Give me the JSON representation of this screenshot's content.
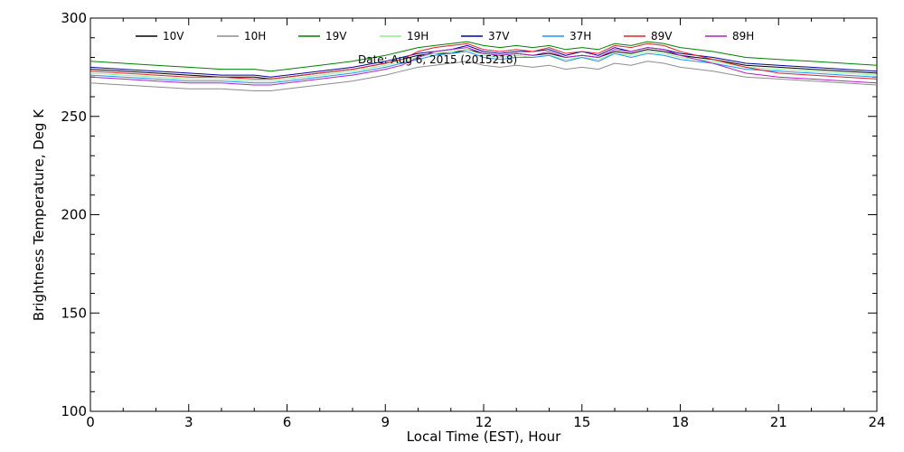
{
  "chart_data": {
    "type": "line",
    "title": "",
    "annotation": "Date: Aug 6, 2015 (2015218)",
    "xlabel": "Local Time (EST), Hour",
    "ylabel": "Brightness Temperature, Deg K",
    "xlim": [
      0,
      24
    ],
    "ylim": [
      100,
      300
    ],
    "xticks": [
      0,
      3,
      6,
      9,
      12,
      15,
      18,
      21,
      24
    ],
    "yticks": [
      100,
      150,
      200,
      250,
      300
    ],
    "grid": false,
    "legend_position": "top",
    "x": [
      0,
      1,
      2,
      3,
      4,
      5,
      5.5,
      6,
      7,
      8,
      9,
      9.5,
      10,
      10.5,
      11,
      11.5,
      12,
      12.5,
      13,
      13.5,
      14,
      14.5,
      15,
      15.5,
      16,
      16.5,
      17,
      17.5,
      18,
      19,
      20,
      21,
      22,
      23,
      24
    ],
    "series": [
      {
        "name": "10V",
        "color": "#000000",
        "values": [
          274,
          273,
          272,
          271,
          270,
          270,
          269,
          270,
          272,
          274,
          277,
          279,
          281,
          282,
          282,
          284,
          282,
          281,
          282,
          281,
          282,
          280,
          281,
          280,
          283,
          282,
          284,
          283,
          281,
          279,
          276,
          275,
          274,
          273,
          272
        ]
      },
      {
        "name": "10H",
        "color": "#8c8c8c",
        "values": [
          267,
          266,
          265,
          264,
          264,
          263,
          263,
          264,
          266,
          268,
          271,
          273,
          275,
          276,
          277,
          278,
          276,
          275,
          276,
          275,
          276,
          274,
          275,
          274,
          277,
          276,
          278,
          277,
          275,
          273,
          270,
          269,
          268,
          267,
          266
        ]
      },
      {
        "name": "19V",
        "color": "#008000",
        "values": [
          278,
          277,
          276,
          275,
          274,
          274,
          273,
          274,
          276,
          278,
          281,
          283,
          285,
          286,
          287,
          288,
          286,
          285,
          286,
          285,
          286,
          284,
          285,
          284,
          287,
          286,
          288,
          287,
          285,
          283,
          280,
          279,
          278,
          277,
          276
        ]
      },
      {
        "name": "19H",
        "color": "#90ee90",
        "values": [
          272,
          271,
          270,
          269,
          269,
          268,
          268,
          269,
          271,
          273,
          276,
          278,
          280,
          282,
          283,
          284,
          281,
          280,
          281,
          280,
          281,
          279,
          280,
          279,
          282,
          281,
          283,
          282,
          280,
          278,
          275,
          274,
          273,
          272,
          271
        ]
      },
      {
        "name": "37V",
        "color": "#0000a0",
        "values": [
          275,
          274,
          273,
          272,
          271,
          271,
          270,
          271,
          273,
          275,
          278,
          280,
          282,
          283,
          284,
          286,
          283,
          282,
          283,
          283,
          284,
          281,
          283,
          281,
          285,
          283,
          285,
          284,
          282,
          280,
          277,
          276,
          275,
          274,
          273
        ]
      },
      {
        "name": "37H",
        "color": "#1e90ff",
        "values": [
          271,
          270,
          269,
          268,
          268,
          267,
          267,
          268,
          270,
          272,
          275,
          277,
          279,
          281,
          282,
          283,
          280,
          279,
          280,
          280,
          281,
          278,
          280,
          278,
          282,
          280,
          282,
          281,
          279,
          277,
          274,
          273,
          272,
          271,
          270
        ]
      },
      {
        "name": "89V",
        "color": "#e0202a",
        "values": [
          273,
          272,
          271,
          270,
          270,
          269,
          269,
          270,
          272,
          274,
          277,
          279,
          283,
          285,
          286,
          287,
          284,
          283,
          284,
          283,
          285,
          282,
          283,
          282,
          286,
          285,
          287,
          286,
          283,
          279,
          275,
          272,
          271,
          270,
          269
        ]
      },
      {
        "name": "89H",
        "color": "#b020c0",
        "values": [
          270,
          269,
          268,
          267,
          267,
          266,
          266,
          267,
          269,
          271,
          274,
          276,
          280,
          283,
          284,
          285,
          282,
          281,
          282,
          281,
          283,
          280,
          281,
          280,
          284,
          283,
          285,
          284,
          281,
          277,
          272,
          270,
          269,
          268,
          267
        ]
      }
    ]
  }
}
